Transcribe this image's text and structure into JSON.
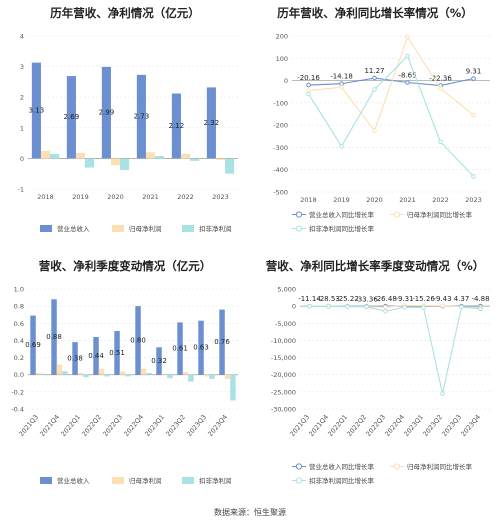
{
  "colors": {
    "revenue": "#6b8fd0",
    "parent_profit": "#fce0b3",
    "deducted_profit": "#a9e2e4",
    "grid": "#e6e6e6",
    "axis": "#999999"
  },
  "source_note": "数据来源：恒生聚源",
  "chart_data": [
    {
      "type": "bar",
      "title": "历年营收、净利情况（亿元）",
      "categories": [
        "2018",
        "2019",
        "2020",
        "2021",
        "2022",
        "2023"
      ],
      "ylim": [
        -1,
        4
      ],
      "yticks": [
        "-1",
        "0",
        "1",
        "2",
        "3",
        "4"
      ],
      "series": [
        {
          "name": "营业总收入",
          "values": [
            3.13,
            2.69,
            2.99,
            2.73,
            2.12,
            2.32
          ],
          "labels": [
            "3.13",
            "2.69",
            "2.99",
            "2.73",
            "2.12",
            "2.32"
          ]
        },
        {
          "name": "归母净利润",
          "values": [
            0.25,
            0.18,
            -0.22,
            0.2,
            0.15,
            -0.05
          ]
        },
        {
          "name": "扣非净利润",
          "values": [
            0.15,
            -0.3,
            -0.38,
            0.08,
            -0.08,
            -0.5
          ]
        }
      ]
    },
    {
      "type": "line",
      "title": "历年营收、净利同比增长率情况（%）",
      "categories": [
        "2018",
        "2019",
        "2020",
        "2021",
        "2022",
        "2023"
      ],
      "ylim": [
        -500,
        200
      ],
      "yticks": [
        "-500",
        "-400",
        "-300",
        "-200",
        "-100",
        "0",
        "100",
        "200"
      ],
      "series": [
        {
          "name": "营业总收入同比增长率",
          "values": [
            -20.16,
            -14.18,
            11.27,
            -8.65,
            -22.36,
            9.31
          ],
          "labels": [
            "-20.16",
            "-14.18",
            "11.27",
            "-8.65",
            "-22.36",
            "9.31"
          ]
        },
        {
          "name": "归母净利润同比增长率",
          "values": [
            -45,
            -30,
            -225,
            195,
            -35,
            -155
          ]
        },
        {
          "name": "扣非净利润同比增长率",
          "values": [
            -60,
            -295,
            -40,
            110,
            -275,
            -430
          ]
        }
      ]
    },
    {
      "type": "bar",
      "title": "营收、净利季度变动情况（亿元）",
      "categories": [
        "2021Q3",
        "2021Q4",
        "2022Q1",
        "2022Q2",
        "2022Q3",
        "2022Q4",
        "2023Q1",
        "2023Q2",
        "2023Q3",
        "2023Q4"
      ],
      "ylim": [
        -0.4,
        1.0
      ],
      "yticks": [
        "-0.4",
        "-0.2",
        "0.0",
        "0.2",
        "0.4",
        "0.6",
        "0.8",
        "1.0"
      ],
      "series": [
        {
          "name": "营业总收入",
          "values": [
            0.69,
            0.88,
            0.38,
            0.44,
            0.51,
            0.8,
            0.32,
            0.61,
            0.63,
            0.76
          ],
          "labels": [
            "0.69",
            "0.88",
            "0.38",
            "0.44",
            "0.51",
            "0.80",
            "0.32",
            "0.61",
            "0.63",
            "0.76"
          ]
        },
        {
          "name": "归母净利润",
          "values": [
            0.02,
            0.12,
            0.02,
            0.07,
            0.04,
            0.07,
            0.01,
            0.03,
            -0.02,
            -0.05
          ]
        },
        {
          "name": "扣非净利润",
          "values": [
            0.01,
            0.04,
            -0.03,
            -0.02,
            -0.02,
            0.02,
            -0.04,
            -0.08,
            -0.05,
            -0.3
          ]
        }
      ]
    },
    {
      "type": "line",
      "title": "营收、净利同比增长率季度变动情况（%）",
      "categories": [
        "2021Q3",
        "2021Q4",
        "2022Q1",
        "2022Q2",
        "2022Q3",
        "2022Q4",
        "2023Q1",
        "2023Q2",
        "2023Q3",
        "2023Q4"
      ],
      "ylim": [
        -30000,
        5000
      ],
      "yticks": [
        "-30,000",
        "-25,000",
        "-20,000",
        "-15,000",
        "-10,000",
        "-5,000",
        "0",
        "5,000"
      ],
      "series": [
        {
          "name": "营业总收入同比增长率",
          "values": [
            -11.14,
            -28.53,
            -25.22,
            -33.36,
            -26.48,
            -9.31,
            -15.26,
            -9.43,
            4.37,
            -4.88
          ],
          "labels": [
            "-11.14",
            "-28.53",
            "-25.22",
            "-33.36",
            "-26.48",
            "-9.31",
            "-15.26",
            "-9.43",
            "4.37",
            "-4.88"
          ]
        },
        {
          "name": "归母净利润同比增长率",
          "values": [
            20,
            40,
            -100,
            -150,
            -300,
            200,
            150,
            100,
            -200,
            -400
          ]
        },
        {
          "name": "扣非净利润同比增长率",
          "values": [
            -50,
            -100,
            -150,
            -200,
            -1500,
            -300,
            -400,
            -25500,
            -300,
            -800
          ]
        }
      ]
    }
  ]
}
